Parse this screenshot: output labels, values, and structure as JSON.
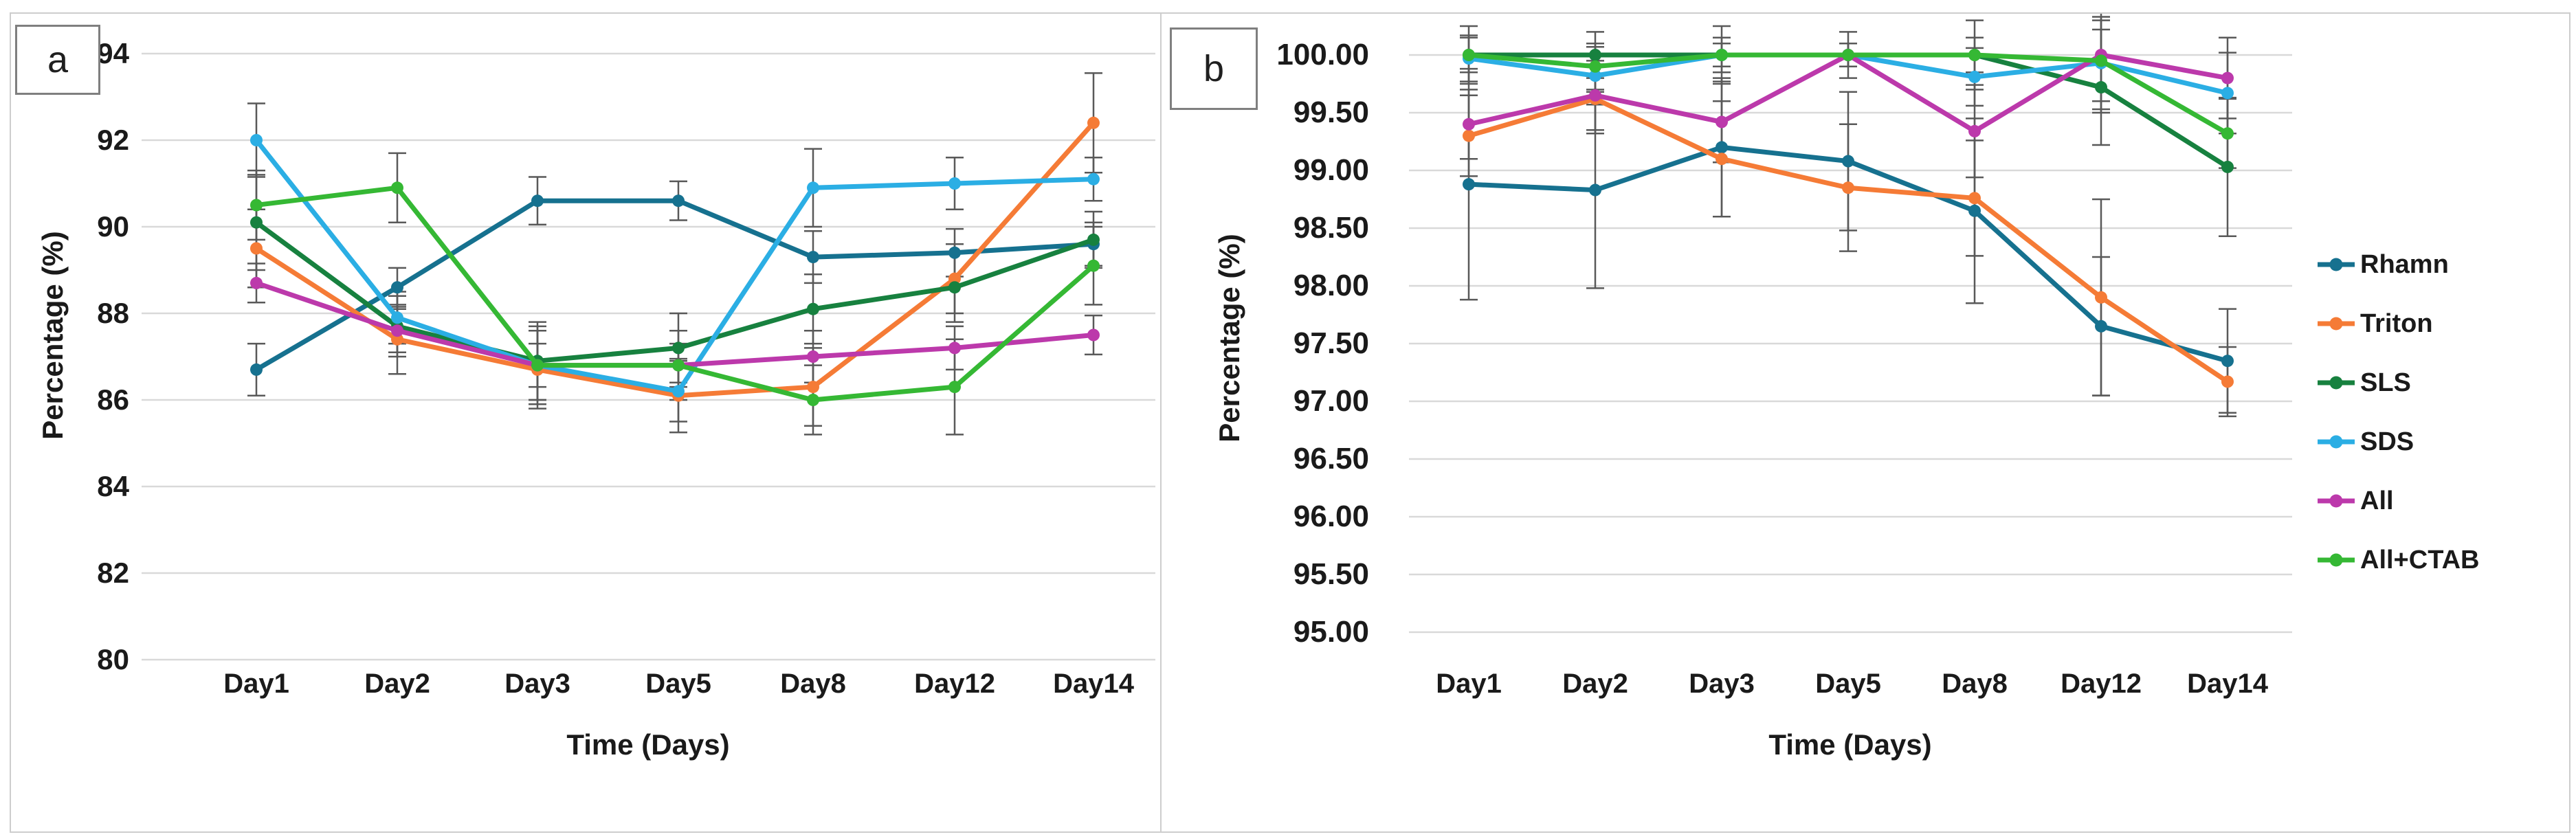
{
  "figure": {
    "background": "#ffffff",
    "border_color": "#cdcdcd",
    "gridline_color": "#d9d9d9",
    "error_bar_color": "#595959",
    "panels": [
      {
        "id": "a",
        "panel_label": "a",
        "y_axis_title": "Percentage (%)",
        "x_axis_title": "Time (Days)",
        "y_tick_labels": [
          "94",
          "92",
          "90",
          "88",
          "86",
          "84",
          "82",
          "80"
        ],
        "x_tick_labels": [
          "Day1",
          "Day2",
          "Day3",
          "Day5",
          "Day8",
          "Day12",
          "Day14"
        ]
      },
      {
        "id": "b",
        "panel_label": "b",
        "y_axis_title": "Percentage (%)",
        "x_axis_title": "Time (Days)",
        "y_tick_labels": [
          "100.00",
          "99.50",
          "99.00",
          "98.50",
          "98.00",
          "97.50",
          "97.00",
          "96.50",
          "96.00",
          "95.50",
          "95.00"
        ],
        "x_tick_labels": [
          "Day1",
          "Day2",
          "Day3",
          "Day5",
          "Day8",
          "Day12",
          "Day14"
        ]
      }
    ],
    "legend": {
      "position": "right-of-panel-b",
      "items": [
        {
          "label": "Rhamn",
          "color": "#16718F"
        },
        {
          "label": "Triton",
          "color": "#F57B36"
        },
        {
          "label": "SLS",
          "color": "#17813F"
        },
        {
          "label": "SDS",
          "color": "#2BAEE4"
        },
        {
          "label": "All",
          "color": "#BC39AB"
        },
        {
          "label": "All+CTAB",
          "color": "#35B834"
        }
      ]
    }
  },
  "chart_data": [
    {
      "type": "line",
      "panel": "a",
      "title": "",
      "xlabel": "Time (Days)",
      "ylabel": "Percentage (%)",
      "categories": [
        "Day1",
        "Day2",
        "Day3",
        "Day5",
        "Day8",
        "Day12",
        "Day14"
      ],
      "ylim": [
        80,
        94
      ],
      "y_ticks": [
        94,
        92,
        90,
        88,
        86,
        84,
        82,
        80
      ],
      "grid": true,
      "error_bars": true,
      "legend_position": "none",
      "series": [
        {
          "name": "Rhamn",
          "color": "#16718F",
          "values": [
            86.7,
            88.6,
            90.6,
            90.6,
            89.3,
            89.4,
            89.6
          ],
          "errors": [
            0.6,
            0.45,
            0.55,
            0.45,
            0.6,
            0.55,
            0.5
          ]
        },
        {
          "name": "Triton",
          "color": "#F57B36",
          "values": [
            89.5,
            87.4,
            86.7,
            86.1,
            86.3,
            88.8,
            92.4
          ],
          "errors": [
            0.9,
            0.8,
            0.9,
            0.85,
            0.9,
            0.8,
            1.15
          ]
        },
        {
          "name": "SLS",
          "color": "#17813F",
          "values": [
            90.1,
            87.7,
            86.9,
            87.2,
            88.1,
            88.6,
            89.7
          ],
          "errors": [
            1.1,
            0.7,
            0.9,
            0.8,
            0.8,
            0.8,
            0.65
          ]
        },
        {
          "name": "SDS",
          "color": "#2BAEE4",
          "values": [
            92.0,
            87.9,
            86.8,
            86.2,
            90.9,
            91.0,
            91.1
          ],
          "errors": [
            0.85,
            0.6,
            0.8,
            0.7,
            0.9,
            0.6,
            0.5
          ]
        },
        {
          "name": "All",
          "color": "#BC39AB",
          "values": [
            88.7,
            87.6,
            86.8,
            86.8,
            87.0,
            87.2,
            87.5
          ],
          "errors": [
            0.45,
            0.5,
            0.5,
            0.5,
            0.6,
            0.5,
            0.45
          ]
        },
        {
          "name": "All+CTAB",
          "color": "#35B834",
          "values": [
            90.5,
            90.9,
            86.8,
            86.8,
            86.0,
            86.3,
            89.1
          ],
          "errors": [
            0.8,
            0.8,
            0.9,
            0.8,
            0.8,
            1.1,
            0.9
          ]
        }
      ]
    },
    {
      "type": "line",
      "panel": "b",
      "title": "",
      "xlabel": "Time (Days)",
      "ylabel": "Percentage (%)",
      "categories": [
        "Day1",
        "Day2",
        "Day3",
        "Day5",
        "Day8",
        "Day12",
        "Day14"
      ],
      "ylim": [
        95,
        100
      ],
      "y_ticks": [
        100,
        99.5,
        99,
        98.5,
        98,
        97.5,
        97,
        96.5,
        96,
        95.5,
        95
      ],
      "grid": true,
      "error_bars": true,
      "legend_position": "right",
      "series": [
        {
          "name": "Rhamn",
          "color": "#16718F",
          "values": [
            98.88,
            98.83,
            99.2,
            99.08,
            98.65,
            97.65,
            97.35
          ],
          "errors": [
            1.0,
            0.85,
            0.6,
            0.6,
            0.8,
            0.6,
            0.45
          ]
        },
        {
          "name": "Triton",
          "color": "#F57B36",
          "values": [
            99.3,
            99.62,
            99.1,
            98.85,
            98.76,
            97.9,
            97.17
          ],
          "errors": [
            0.35,
            0.3,
            0.5,
            0.55,
            0.5,
            0.85,
            0.3
          ]
        },
        {
          "name": "SLS",
          "color": "#17813F",
          "values": [
            100.0,
            100.0,
            100.0,
            100.0,
            100.0,
            99.72,
            99.03
          ],
          "errors": [
            0.25,
            0.2,
            0.25,
            0.2,
            0.3,
            0.5,
            0.6
          ]
        },
        {
          "name": "SDS",
          "color": "#2BAEE4",
          "values": [
            99.97,
            99.82,
            100.0,
            100.0,
            99.81,
            99.93,
            99.67
          ],
          "errors": [
            0.2,
            0.25,
            0.15,
            0.1,
            0.25,
            0.4,
            0.35
          ]
        },
        {
          "name": "All",
          "color": "#BC39AB",
          "values": [
            99.4,
            99.65,
            99.42,
            100.0,
            99.34,
            100.0,
            99.8
          ],
          "errors": [
            0.3,
            0.3,
            0.35,
            0.1,
            0.4,
            0.5,
            0.35
          ]
        },
        {
          "name": "All+CTAB",
          "color": "#35B834",
          "values": [
            100.0,
            99.9,
            100.0,
            100.0,
            100.0,
            99.95,
            99.32
          ],
          "errors": [
            0.15,
            0.2,
            0.1,
            0.1,
            0.15,
            0.35,
            0.3
          ]
        }
      ]
    }
  ]
}
